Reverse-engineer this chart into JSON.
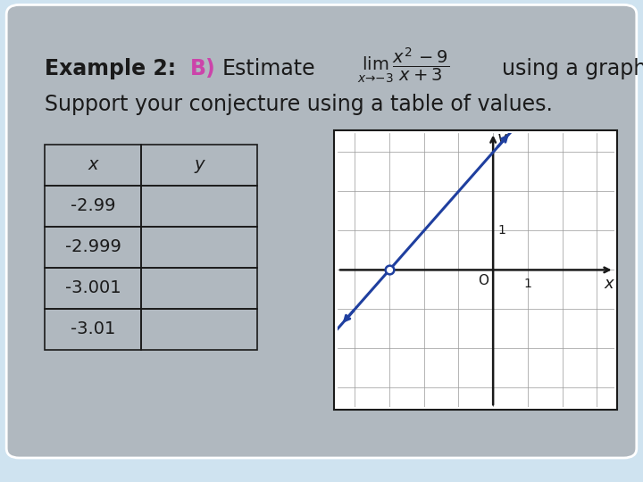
{
  "title_example": "Example 2:",
  "title_b": "B)",
  "title_rest": " Estimate",
  "title_limit": "\\lim_{x\\to -3}\\frac{x^2-9}{x+3}",
  "title_end": " using a graph.",
  "subtitle": "Support your conjecture using a table of values.",
  "table_x_vals": [
    "-2.99",
    "-2.999",
    "-3.001",
    "-3.01"
  ],
  "table_header_x": "x",
  "table_header_y": "y",
  "bg_outer": "#cfe3f0",
  "bg_inner": "#b0b8bf",
  "graph_bg": "#ffffff",
  "graph_line_color": "#1f3f9f",
  "grid_color": "#999999",
  "axis_color": "#1a1a1a",
  "table_border_color": "#1a1a1a",
  "text_color": "#1a1a1a",
  "b_color": "#cc44aa",
  "figsize": [
    7.2,
    5.4
  ],
  "dpi": 100
}
